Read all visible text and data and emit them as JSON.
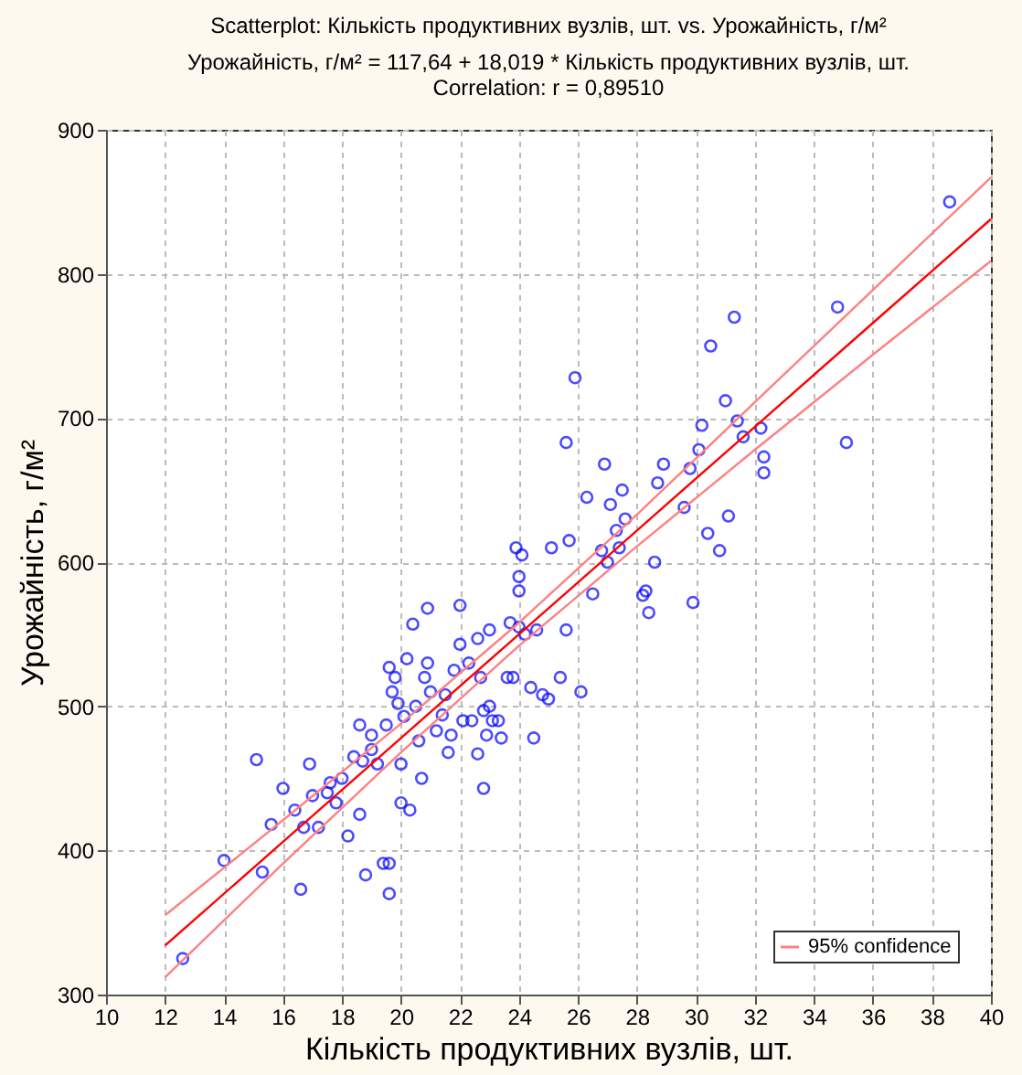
{
  "chart_data": {
    "type": "scatter",
    "title": "Scatterplot: Кількість продуктивних вузлів, шт. vs. Урожайність, г/м²",
    "subtitle": "Урожайність, г/м² = 117,64 + 18,019 * Кількість продуктивних вузлів, шт.",
    "annotations": [
      "Correlation: r = 0,89510"
    ],
    "xlabel": "Кількість продуктивних вузлів, шт.",
    "ylabel": "Урожайність, г/м²",
    "xlim": [
      10,
      40
    ],
    "ylim": [
      300,
      900
    ],
    "xticks": [
      10,
      12,
      14,
      16,
      18,
      20,
      22,
      24,
      26,
      28,
      30,
      32,
      34,
      36,
      38,
      40
    ],
    "yticks": [
      300,
      400,
      500,
      600,
      700,
      800,
      900
    ],
    "grid": true,
    "legend": "bottom right",
    "series": [
      {
        "color": "#0000ff",
        "marker": "circle",
        "x": [
          12.6,
          14,
          15.1,
          15.3,
          15.6,
          16,
          16.4,
          16.6,
          16.7,
          16.9,
          17,
          17.2,
          17.5,
          17.6,
          17.8,
          18,
          18.2,
          18.4,
          18.6,
          18.7,
          18.6,
          18.8,
          19,
          19,
          19.2,
          19.4,
          19.6,
          19.6,
          19.5,
          19.6,
          19.7,
          19.8,
          19.9,
          20,
          20,
          20.1,
          20.2,
          20.3,
          20.4,
          20.5,
          20.6,
          20.7,
          20.8,
          20.9,
          20.9,
          21,
          21.2,
          21.4,
          21.5,
          21.6,
          21.7,
          21.8,
          22,
          22,
          22.1,
          22.3,
          22.4,
          22.6,
          22.6,
          22.7,
          22.8,
          22.8,
          22.9,
          23,
          23,
          23.1,
          23.3,
          23.4,
          23.6,
          23.7,
          23.8,
          23.9,
          24,
          24,
          24,
          24.1,
          24.2,
          24.4,
          24.5,
          24.6,
          24.8,
          25,
          25.1,
          25.4,
          25.6,
          25.6,
          25.7,
          25.9,
          26.1,
          26.3,
          26.5,
          26.8,
          26.9,
          27.1,
          27,
          27.3,
          27.4,
          27.5,
          27.6,
          28.2,
          28.3,
          28.4,
          28.6,
          28.7,
          28.9,
          29.6,
          29.8,
          29.9,
          30.1,
          30.2,
          30.4,
          30.5,
          30.8,
          31,
          31.1,
          31.3,
          31.4,
          31.6,
          32.2,
          32.3,
          32.3,
          34.8,
          35.1,
          38.6
        ],
        "values": [
          325,
          393,
          463,
          385,
          418,
          443,
          428,
          373,
          416,
          460,
          438,
          416,
          440,
          447,
          433,
          450,
          410,
          465,
          425,
          462,
          487,
          383,
          480,
          470,
          460,
          391,
          370,
          391,
          487,
          527,
          510,
          520,
          502,
          433,
          460,
          493,
          533,
          428,
          557,
          500,
          476,
          450,
          520,
          568,
          530,
          510,
          483,
          494,
          508,
          468,
          480,
          525,
          543,
          570,
          490,
          530,
          490,
          547,
          467,
          520,
          497,
          443,
          480,
          553,
          500,
          490,
          490,
          478,
          520,
          558,
          520,
          610,
          590,
          580,
          555,
          605,
          550,
          513,
          478,
          553,
          508,
          505,
          610,
          520,
          553,
          683,
          615,
          728,
          510,
          645,
          578,
          608,
          668,
          640,
          600,
          622,
          610,
          650,
          630,
          577,
          580,
          565,
          600,
          655,
          668,
          638,
          665,
          572,
          678,
          695,
          620,
          750,
          608,
          712,
          632,
          770,
          698,
          687,
          693,
          673,
          662,
          777,
          683,
          850
        ]
      },
      {
        "type": "line",
        "color": "#ff0000",
        "x": [
          12,
          16,
          20,
          24,
          28,
          32,
          36,
          40
        ],
        "values": [
          334,
          406,
          478,
          550,
          622,
          694,
          766,
          838
        ]
      },
      {
        "type": "line",
        "name": "95% confidence",
        "color": "#ff8080",
        "x": [
          12,
          16,
          20,
          24,
          28,
          32,
          36,
          40
        ],
        "values": [
          355,
          421,
          488,
          558,
          633,
          711,
          789,
          867
        ]
      },
      {
        "type": "line",
        "color": "#ff8080",
        "x": [
          12,
          16,
          20,
          24,
          28,
          32,
          36,
          40
        ],
        "values": [
          312,
          391,
          468,
          542,
          611,
          678,
          744,
          809
        ]
      }
    ]
  }
}
